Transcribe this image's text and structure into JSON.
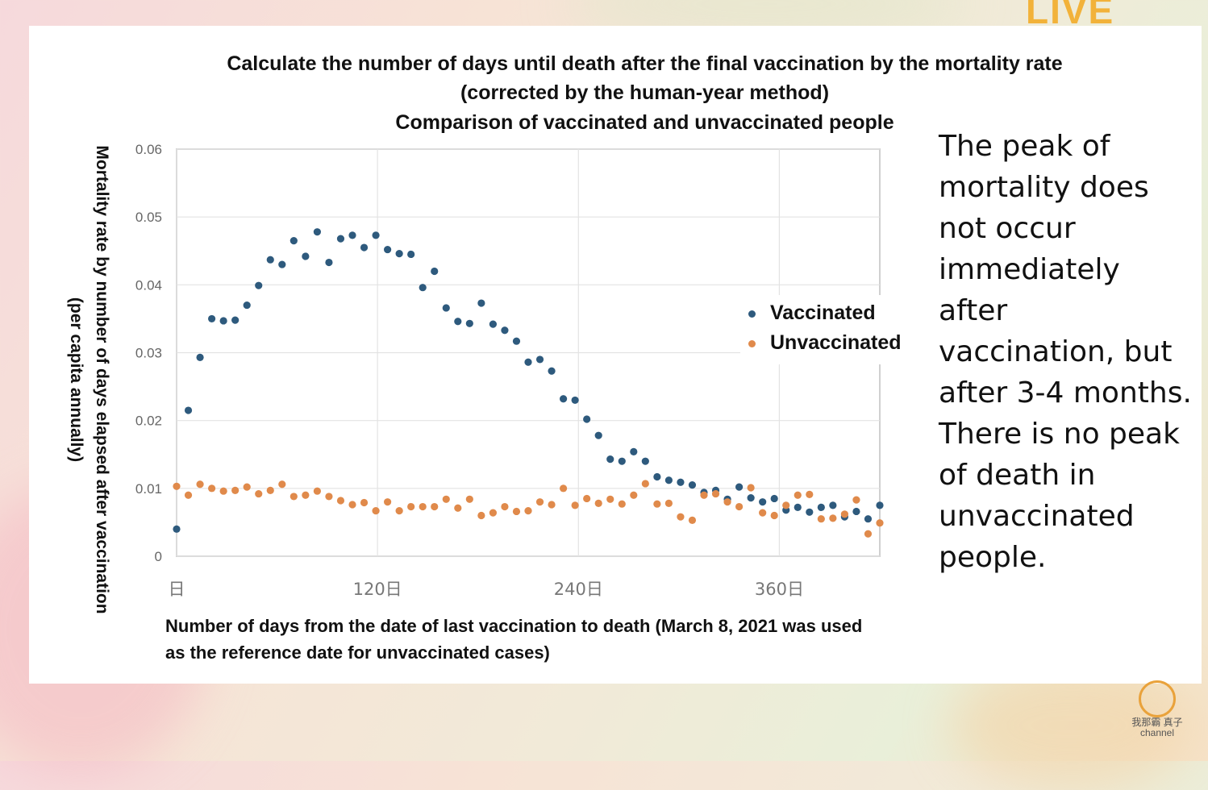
{
  "chart_data": {
    "type": "scatter",
    "title": [
      "Calculate the number of days until death after the final vaccination by the mortality rate",
      "(corrected by the human-year method)",
      "Comparison of vaccinated and unvaccinated people"
    ],
    "ylabel": [
      "Mortality rate by number of days elapsed after vaccination",
      "(per capita annually)"
    ],
    "xlabel": [
      "Number of days from the date of last vaccination to death (March 8, 2021 was used",
      "as the reference date for unvaccinated cases)"
    ],
    "xlim": [
      0,
      420
    ],
    "ylim": [
      0,
      0.06
    ],
    "yticks": [
      "0",
      "0.01",
      "0.02",
      "0.03",
      "0.04",
      "0.05",
      "0.06"
    ],
    "xticks": [
      {
        "value": 0,
        "label": "日"
      },
      {
        "value": 120,
        "label": "120日"
      },
      {
        "value": 240,
        "label": "240日"
      },
      {
        "value": 360,
        "label": "360日"
      }
    ],
    "grid": true,
    "legend_position": "right",
    "series": [
      {
        "name": "Vaccinated",
        "color": "#2e5a7d",
        "x": [
          0,
          7,
          14,
          21,
          28,
          35,
          42,
          49,
          56,
          63,
          70,
          77,
          84,
          91,
          98,
          105,
          112,
          119,
          126,
          133,
          140,
          147,
          154,
          161,
          168,
          175,
          182,
          189,
          196,
          203,
          210,
          217,
          224,
          231,
          238,
          245,
          252,
          259,
          266,
          273,
          280,
          287,
          294,
          301,
          308,
          315,
          322,
          329,
          336,
          343,
          350,
          357,
          364,
          371,
          378,
          385,
          392,
          399,
          406,
          413,
          420
        ],
        "values": [
          0.004,
          0.0215,
          0.0293,
          0.035,
          0.0347,
          0.0348,
          0.037,
          0.0399,
          0.0437,
          0.043,
          0.0465,
          0.0442,
          0.0478,
          0.0433,
          0.0468,
          0.0473,
          0.0455,
          0.0473,
          0.0452,
          0.0446,
          0.0445,
          0.0396,
          0.042,
          0.0366,
          0.0346,
          0.0343,
          0.0373,
          0.0342,
          0.0333,
          0.0317,
          0.0286,
          0.029,
          0.0273,
          0.0232,
          0.023,
          0.0202,
          0.0178,
          0.0143,
          0.014,
          0.0154,
          0.014,
          0.0117,
          0.0112,
          0.0109,
          0.0105,
          0.0094,
          0.0097,
          0.0084,
          0.0102,
          0.0086,
          0.008,
          0.0085,
          0.0068,
          0.0072,
          0.0065,
          0.0072,
          0.0075,
          0.0058,
          0.0066,
          0.0055,
          0.0075
        ]
      },
      {
        "name": "Unvaccinated",
        "color": "#e08a4b",
        "x": [
          0,
          7,
          14,
          21,
          28,
          35,
          42,
          49,
          56,
          63,
          70,
          77,
          84,
          91,
          98,
          105,
          112,
          119,
          126,
          133,
          140,
          147,
          154,
          161,
          168,
          175,
          182,
          189,
          196,
          203,
          210,
          217,
          224,
          231,
          238,
          245,
          252,
          259,
          266,
          273,
          280,
          287,
          294,
          301,
          308,
          315,
          322,
          329,
          336,
          343,
          350,
          357,
          364,
          371,
          378,
          385,
          392,
          399,
          406,
          413,
          420
        ],
        "values": [
          0.0103,
          0.009,
          0.0106,
          0.01,
          0.0096,
          0.0097,
          0.0102,
          0.0092,
          0.0097,
          0.0106,
          0.0088,
          0.009,
          0.0096,
          0.0088,
          0.0082,
          0.0076,
          0.0079,
          0.0067,
          0.008,
          0.0067,
          0.0073,
          0.0073,
          0.0073,
          0.0084,
          0.0071,
          0.0084,
          0.006,
          0.0064,
          0.0073,
          0.0066,
          0.0067,
          0.008,
          0.0076,
          0.01,
          0.0075,
          0.0085,
          0.0078,
          0.0084,
          0.0077,
          0.009,
          0.0107,
          0.0077,
          0.0078,
          0.0058,
          0.0053,
          0.009,
          0.0092,
          0.008,
          0.0073,
          0.0101,
          0.0064,
          0.006,
          0.0075,
          0.009,
          0.0091,
          0.0055,
          0.0056,
          0.0062,
          0.0083,
          0.0033,
          0.0049
        ]
      }
    ]
  },
  "annotation": {
    "lines": [
      "The peak of",
      "mortality does",
      "not occur",
      "immediately after",
      "vaccination, but",
      "after 3-4 months.",
      "There is no peak",
      "of death in",
      "unvaccinated",
      "people."
    ]
  },
  "branding": {
    "logo_text": "LIVE",
    "watermark_text": "我那霸 真子",
    "watermark_sub": "channel"
  }
}
